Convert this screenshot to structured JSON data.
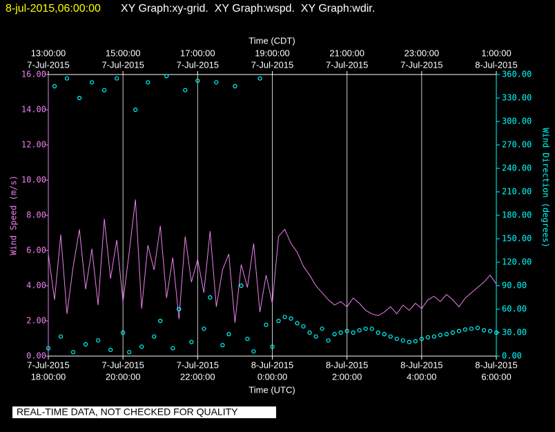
{
  "chart_data": {
    "type": "line",
    "title_time": "8-jul-2015,06:00:00",
    "title": "XY Graph:xy-grid.  XY Graph:wspd.  XY Graph:wdir.",
    "x_label_top": "Time (CDT)",
    "x_label": "Time (UTC)",
    "y_label": "Wind Speed (m/s)",
    "y2_label": "Wind Direction (degrees)",
    "footer": "REAL-TIME DATA, NOT CHECKED FOR QUALITY",
    "grid": true,
    "xlim": [
      "2015-07-07 18:00",
      "2015-07-08 06:00"
    ],
    "xticks": [
      {
        "value": "2015-07-07 18:00",
        "label": [
          "7-Jul-2015",
          "18:00:00"
        ]
      },
      {
        "value": "2015-07-07 20:00",
        "label": [
          "7-Jul-2015",
          "20:00:00"
        ]
      },
      {
        "value": "2015-07-07 22:00",
        "label": [
          "7-Jul-2015",
          "22:00:00"
        ]
      },
      {
        "value": "2015-07-08 00:00",
        "label": [
          "8-Jul-2015",
          "0:00:00"
        ]
      },
      {
        "value": "2015-07-08 02:00",
        "label": [
          "8-Jul-2015",
          "2:00:00"
        ]
      },
      {
        "value": "2015-07-08 04:00",
        "label": [
          "8-Jul-2015",
          "4:00:00"
        ]
      },
      {
        "value": "2015-07-08 06:00",
        "label": [
          "8-Jul-2015",
          "6:00:00"
        ]
      }
    ],
    "x2ticks": [
      {
        "value": "2015-07-07 18:00",
        "label": [
          "13:00:00",
          "7-Jul-2015"
        ]
      },
      {
        "value": "2015-07-07 20:00",
        "label": [
          "15:00:00",
          "7-Jul-2015"
        ]
      },
      {
        "value": "2015-07-07 22:00",
        "label": [
          "17:00:00",
          "7-Jul-2015"
        ]
      },
      {
        "value": "2015-07-08 00:00",
        "label": [
          "19:00:00",
          "7-Jul-2015"
        ]
      },
      {
        "value": "2015-07-08 02:00",
        "label": [
          "21:00:00",
          "7-Jul-2015"
        ]
      },
      {
        "value": "2015-07-08 04:00",
        "label": [
          "23:00:00",
          "7-Jul-2015"
        ]
      },
      {
        "value": "2015-07-08 06:00",
        "label": [
          "1:00:00",
          "8-Jul-2015"
        ]
      }
    ],
    "ylim": [
      0,
      16
    ],
    "yticks": [
      {
        "value": 0,
        "label": "0.00"
      },
      {
        "value": 2,
        "label": "2.00"
      },
      {
        "value": 4,
        "label": "4.00"
      },
      {
        "value": 6,
        "label": "6.00"
      },
      {
        "value": 8,
        "label": "8.00"
      },
      {
        "value": 10,
        "label": "10.00"
      },
      {
        "value": 12,
        "label": "12.00"
      },
      {
        "value": 14,
        "label": "14.00"
      },
      {
        "value": 16,
        "label": "16.00"
      }
    ],
    "y2lim": [
      0,
      360
    ],
    "y2ticks": [
      {
        "value": 0,
        "label": "0.00"
      },
      {
        "value": 30,
        "label": "30.00"
      },
      {
        "value": 60,
        "label": "60.00"
      },
      {
        "value": 90,
        "label": "90.00"
      },
      {
        "value": 120,
        "label": "120.00"
      },
      {
        "value": 150,
        "label": "150.00"
      },
      {
        "value": 180,
        "label": "180.00"
      },
      {
        "value": 210,
        "label": "210.00"
      },
      {
        "value": 240,
        "label": "240.00"
      },
      {
        "value": 270,
        "label": "270.00"
      },
      {
        "value": 300,
        "label": "300.00"
      },
      {
        "value": 330,
        "label": "330.00"
      },
      {
        "value": 360,
        "label": "360.00"
      }
    ],
    "x": [
      "2015-07-07 18:00",
      "2015-07-07 18:10",
      "2015-07-07 18:20",
      "2015-07-07 18:30",
      "2015-07-07 18:40",
      "2015-07-07 18:50",
      "2015-07-07 19:00",
      "2015-07-07 19:10",
      "2015-07-07 19:20",
      "2015-07-07 19:30",
      "2015-07-07 19:40",
      "2015-07-07 19:50",
      "2015-07-07 20:00",
      "2015-07-07 20:10",
      "2015-07-07 20:20",
      "2015-07-07 20:30",
      "2015-07-07 20:40",
      "2015-07-07 20:50",
      "2015-07-07 21:00",
      "2015-07-07 21:10",
      "2015-07-07 21:20",
      "2015-07-07 21:30",
      "2015-07-07 21:40",
      "2015-07-07 21:50",
      "2015-07-07 22:00",
      "2015-07-07 22:10",
      "2015-07-07 22:20",
      "2015-07-07 22:30",
      "2015-07-07 22:40",
      "2015-07-07 22:50",
      "2015-07-07 23:00",
      "2015-07-07 23:10",
      "2015-07-07 23:20",
      "2015-07-07 23:30",
      "2015-07-07 23:40",
      "2015-07-07 23:50",
      "2015-07-08 00:00",
      "2015-07-08 00:10",
      "2015-07-08 00:20",
      "2015-07-08 00:30",
      "2015-07-08 00:40",
      "2015-07-08 00:50",
      "2015-07-08 01:00",
      "2015-07-08 01:10",
      "2015-07-08 01:20",
      "2015-07-08 01:30",
      "2015-07-08 01:40",
      "2015-07-08 01:50",
      "2015-07-08 02:00",
      "2015-07-08 02:10",
      "2015-07-08 02:20",
      "2015-07-08 02:30",
      "2015-07-08 02:40",
      "2015-07-08 02:50",
      "2015-07-08 03:00",
      "2015-07-08 03:10",
      "2015-07-08 03:20",
      "2015-07-08 03:30",
      "2015-07-08 03:40",
      "2015-07-08 03:50",
      "2015-07-08 04:00",
      "2015-07-08 04:10",
      "2015-07-08 04:20",
      "2015-07-08 04:30",
      "2015-07-08 04:40",
      "2015-07-08 04:50",
      "2015-07-08 05:00",
      "2015-07-08 05:10",
      "2015-07-08 05:20",
      "2015-07-08 05:30",
      "2015-07-08 05:40",
      "2015-07-08 05:50",
      "2015-07-08 06:00"
    ],
    "series": [
      {
        "type": "line",
        "color": "#ee82ee",
        "values": [
          5.8,
          3.2,
          6.9,
          2.4,
          5.1,
          7.2,
          3.8,
          6.1,
          2.9,
          7.8,
          4.4,
          6.6,
          3.1,
          5.9,
          8.9,
          2.7,
          6.3,
          4.9,
          7.4,
          3.3,
          5.6,
          2.1,
          6.8,
          4.2,
          5.5,
          3.6,
          7.1,
          2.8,
          4.9,
          5.8,
          1.9,
          5.2,
          3.9,
          6.4,
          2.5,
          4.6,
          3.0,
          6.8,
          7.2,
          6.4,
          5.9,
          5.1,
          4.6,
          4.0,
          3.6,
          3.2,
          2.9,
          3.1,
          2.8,
          3.3,
          3.0,
          2.6,
          2.4,
          2.3,
          2.5,
          2.8,
          2.4,
          2.9,
          2.6,
          3.0,
          2.7,
          3.2,
          3.4,
          3.1,
          3.5,
          3.2,
          2.8,
          3.3,
          3.6,
          3.9,
          4.2,
          4.6,
          4.1
        ]
      },
      {
        "type": "scatter",
        "axis": "y2",
        "color": "#00ffff",
        "values": [
          10,
          345,
          25,
          355,
          5,
          330,
          15,
          350,
          20,
          340,
          8,
          355,
          30,
          5,
          315,
          12,
          350,
          25,
          45,
          358,
          10,
          60,
          340,
          18,
          352,
          35,
          75,
          350,
          14,
          28,
          345,
          90,
          22,
          6,
          355,
          40,
          12,
          45,
          50,
          48,
          42,
          38,
          30,
          25,
          35,
          20,
          28,
          30,
          32,
          30,
          33,
          35,
          35,
          30,
          28,
          25,
          22,
          20,
          18,
          19,
          22,
          24,
          25,
          27,
          28,
          30,
          32,
          34,
          35,
          36,
          33,
          32,
          30
        ]
      }
    ]
  }
}
